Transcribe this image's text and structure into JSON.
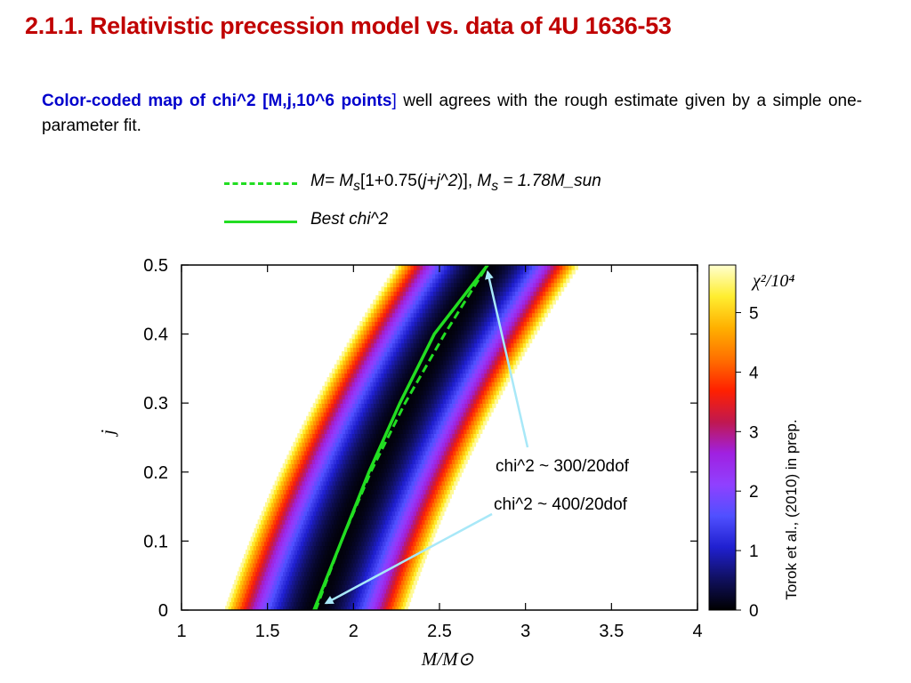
{
  "slide": {
    "title": "2.1.1. Relativistic precession model vs. data of 4U 1636-53",
    "intro_highlight": "Color-coded map of chi^2 [M,j,10^6 points",
    "intro_bracket": "]",
    "intro_rest": " well agrees with the rough estimate given by a simple one-parameter fit.",
    "legend": {
      "dashed_prefix": "M= M",
      "dashed_sub": "s",
      "dashed_mid": "[1+0.75(",
      "dashed_italic": "j+j^2",
      "dashed_close": ")],  ",
      "dashed_ms": "M",
      "dashed_ms_sub": "s",
      "dashed_tail": " = 1.78M_sun",
      "solid": "Best  chi^2"
    },
    "credit": "Torok et al., (2010) in prep."
  },
  "colors": {
    "title": "#c00000",
    "highlight": "#0000cc",
    "fit_line": "#22dd22",
    "arrow": "#a8e8f8"
  },
  "chart_data": {
    "type": "heatmap",
    "title": "",
    "xlabel": "M/M⊙",
    "ylabel": "j",
    "xlim": [
      1,
      4
    ],
    "ylim": [
      0,
      0.5
    ],
    "x_ticks": [
      "1",
      "1.5",
      "2",
      "2.5",
      "3",
      "3.5",
      "4"
    ],
    "y_ticks": [
      "0",
      "0.1",
      "0.2",
      "0.3",
      "0.4",
      "0.5"
    ],
    "colorbar": {
      "label": "χ²/10⁴",
      "range": [
        0,
        5.8
      ],
      "ticks": [
        "0",
        "1",
        "2",
        "3",
        "4",
        "5"
      ],
      "colormap": [
        "#000000",
        "#101060",
        "#2020d0",
        "#5050ff",
        "#9040ff",
        "#a020e0",
        "#c01850",
        "#ff2000",
        "#ff7000",
        "#ffb000",
        "#ffee30",
        "#ffffd0"
      ]
    },
    "valley_formula": "M = 1.78[1+0.75(j+j^2)]",
    "valley_width_M": 0.53,
    "valley_center_chi2": 0.05,
    "best_fit_line": {
      "j": [
        0,
        0.1,
        0.2,
        0.3,
        0.4,
        0.5
      ],
      "M": [
        1.77,
        1.93,
        2.09,
        2.27,
        2.47,
        2.78
      ]
    },
    "estimate_line": {
      "j": [
        0,
        0.1,
        0.2,
        0.3,
        0.4,
        0.5
      ],
      "M": [
        1.78,
        1.93,
        2.1,
        2.3,
        2.53,
        2.78
      ]
    },
    "annotations": [
      {
        "text": "chi^2 ~ 300/20dof",
        "points_to": [
          2.78,
          0.49
        ]
      },
      {
        "text": "chi^2 ~ 400/20dof",
        "points_to": [
          1.84,
          0.01
        ]
      }
    ]
  }
}
